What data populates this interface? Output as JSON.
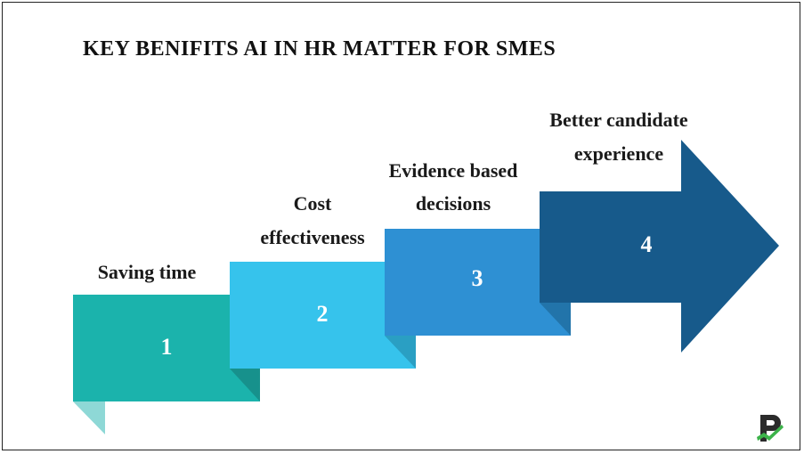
{
  "title": "KEY BENIFITS AI IN HR MATTER FOR SMES",
  "steps": [
    {
      "number": "1",
      "label": "Saving time",
      "color": "#1BB3AC",
      "shadow": "#17918C",
      "flap": "#8ED8D6"
    },
    {
      "number": "2",
      "label_line1": "Cost",
      "label_line2": "effectiveness",
      "color": "#36C3EC",
      "shadow": "#2A9FC3"
    },
    {
      "number": "3",
      "label_line1": "Evidence based",
      "label_line2": "decisions",
      "color": "#2E90D3",
      "shadow": "#2274AA"
    },
    {
      "number": "4",
      "label_line1": "Better candidate",
      "label_line2": "experience",
      "color": "#175A8B"
    }
  ],
  "logo": {
    "icon": "p-logo-icon",
    "colors": [
      "#2b2b2b",
      "#3cb34a"
    ]
  }
}
